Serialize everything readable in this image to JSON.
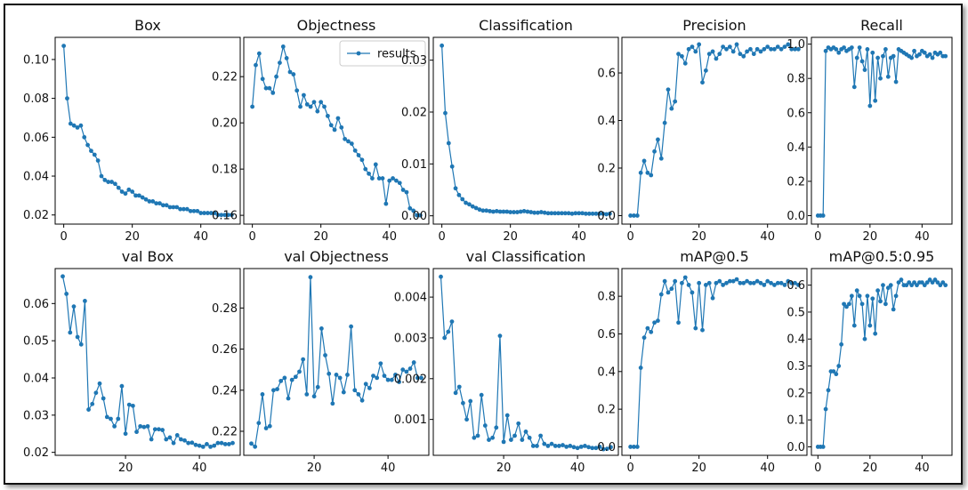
{
  "figure": {
    "series_color": "#1f77b4",
    "background": "#ffffff",
    "border_color": "#111111"
  },
  "legend": {
    "label": "results",
    "placement": "upper-right of Objectness panel"
  },
  "chart_data": [
    {
      "type": "line",
      "title": "Box",
      "xlim": [
        -2.5,
        51.5
      ],
      "ylim": [
        0.0153,
        0.1114
      ],
      "xticks": [
        0,
        20,
        40
      ],
      "xtick_labels": [
        "0",
        "20",
        "40"
      ],
      "yticks": [
        0.02,
        0.04,
        0.06,
        0.08,
        0.1
      ],
      "ytick_labels": [
        "0.02",
        "0.04",
        "0.06",
        "0.08",
        "0.10"
      ],
      "x": [
        0,
        1,
        2,
        3,
        4,
        5,
        6,
        7,
        8,
        9,
        10,
        11,
        12,
        13,
        14,
        15,
        16,
        17,
        18,
        19,
        20,
        21,
        22,
        23,
        24,
        25,
        26,
        27,
        28,
        29,
        30,
        31,
        32,
        33,
        34,
        35,
        36,
        37,
        38,
        39,
        40,
        41,
        42,
        43,
        44,
        45,
        46,
        47,
        48,
        49
      ],
      "y": [
        0.107,
        0.08,
        0.067,
        0.066,
        0.065,
        0.066,
        0.06,
        0.056,
        0.053,
        0.051,
        0.048,
        0.04,
        0.038,
        0.037,
        0.037,
        0.036,
        0.034,
        0.032,
        0.031,
        0.033,
        0.032,
        0.03,
        0.03,
        0.029,
        0.028,
        0.027,
        0.027,
        0.026,
        0.026,
        0.025,
        0.025,
        0.024,
        0.024,
        0.024,
        0.023,
        0.023,
        0.023,
        0.022,
        0.022,
        0.022,
        0.021,
        0.021,
        0.021,
        0.021,
        0.021,
        0.02,
        0.02,
        0.02,
        0.02,
        0.02
      ]
    },
    {
      "type": "line",
      "title": "Objectness",
      "xlim": [
        -2.5,
        51.5
      ],
      "ylim": [
        0.1562,
        0.237
      ],
      "legend": true,
      "xticks": [
        0,
        20,
        40
      ],
      "xtick_labels": [
        "0",
        "20",
        "40"
      ],
      "yticks": [
        0.16,
        0.18,
        0.2,
        0.22
      ],
      "ytick_labels": [
        "0.16",
        "0.18",
        "0.20",
        "0.22"
      ],
      "x": [
        0,
        1,
        2,
        3,
        4,
        5,
        6,
        7,
        8,
        9,
        10,
        11,
        12,
        13,
        14,
        15,
        16,
        17,
        18,
        19,
        20,
        21,
        22,
        23,
        24,
        25,
        26,
        27,
        28,
        29,
        30,
        31,
        32,
        33,
        34,
        35,
        36,
        37,
        38,
        39,
        40,
        41,
        42,
        43,
        44,
        45,
        46,
        47,
        48,
        49
      ],
      "y": [
        0.207,
        0.225,
        0.23,
        0.219,
        0.215,
        0.215,
        0.213,
        0.22,
        0.226,
        0.233,
        0.228,
        0.222,
        0.221,
        0.214,
        0.207,
        0.212,
        0.208,
        0.207,
        0.209,
        0.205,
        0.209,
        0.207,
        0.203,
        0.199,
        0.197,
        0.202,
        0.198,
        0.193,
        0.192,
        0.191,
        0.188,
        0.186,
        0.184,
        0.18,
        0.178,
        0.176,
        0.182,
        0.176,
        0.176,
        0.165,
        0.175,
        0.176,
        0.175,
        0.174,
        0.171,
        0.17,
        0.163,
        0.162,
        0.16,
        0.16
      ]
    },
    {
      "type": "line",
      "title": "Classification",
      "xlim": [
        -2.5,
        51.5
      ],
      "ylim": [
        -0.0016,
        0.0344
      ],
      "xticks": [
        0,
        20,
        40
      ],
      "xtick_labels": [
        "0",
        "20",
        "40"
      ],
      "yticks": [
        0.0,
        0.01,
        0.02,
        0.03
      ],
      "ytick_labels": [
        "0.00",
        "0.01",
        "0.02",
        "0.03"
      ],
      "x": [
        0,
        1,
        2,
        3,
        4,
        5,
        6,
        7,
        8,
        9,
        10,
        11,
        12,
        13,
        14,
        15,
        16,
        17,
        18,
        19,
        20,
        21,
        22,
        23,
        24,
        25,
        26,
        27,
        28,
        29,
        30,
        31,
        32,
        33,
        34,
        35,
        36,
        37,
        38,
        39,
        40,
        41,
        42,
        43,
        44,
        45,
        46,
        47,
        48,
        49
      ],
      "y": [
        0.0328,
        0.0198,
        0.014,
        0.0095,
        0.0053,
        0.004,
        0.0032,
        0.0025,
        0.0022,
        0.0018,
        0.0015,
        0.0012,
        0.001,
        0.001,
        0.0009,
        0.0008,
        0.0009,
        0.0008,
        0.0008,
        0.0008,
        0.0007,
        0.0007,
        0.0007,
        0.0008,
        0.0009,
        0.0008,
        0.0007,
        0.0006,
        0.0006,
        0.0007,
        0.0006,
        0.0005,
        0.0005,
        0.0005,
        0.0005,
        0.0005,
        0.0005,
        0.0005,
        0.0004,
        0.0005,
        0.0005,
        0.0005,
        0.0004,
        0.0004,
        0.0004,
        0.0004,
        0.0004,
        0.0004,
        0.0003,
        0.0004
      ]
    },
    {
      "type": "line",
      "title": "Precision",
      "xlim": [
        -2.5,
        51.5
      ],
      "ylim": [
        -0.0357,
        0.7497
      ],
      "xticks": [
        0,
        20,
        40
      ],
      "xtick_labels": [
        "0",
        "20",
        "40"
      ],
      "yticks": [
        0.0,
        0.2,
        0.4,
        0.6
      ],
      "ytick_labels": [
        "0.0",
        "0.2",
        "0.4",
        "0.6"
      ],
      "x": [
        0,
        1,
        2,
        3,
        4,
        5,
        6,
        7,
        8,
        9,
        10,
        11,
        12,
        13,
        14,
        15,
        16,
        17,
        18,
        19,
        20,
        21,
        22,
        23,
        24,
        25,
        26,
        27,
        28,
        29,
        30,
        31,
        32,
        33,
        34,
        35,
        36,
        37,
        38,
        39,
        40,
        41,
        42,
        43,
        44,
        45,
        46,
        47,
        48,
        49
      ],
      "y": [
        0.0,
        0.0,
        0.0,
        0.18,
        0.23,
        0.18,
        0.17,
        0.27,
        0.32,
        0.24,
        0.39,
        0.53,
        0.45,
        0.48,
        0.68,
        0.67,
        0.64,
        0.7,
        0.71,
        0.69,
        0.72,
        0.56,
        0.61,
        0.68,
        0.69,
        0.66,
        0.68,
        0.71,
        0.7,
        0.71,
        0.69,
        0.72,
        0.68,
        0.67,
        0.69,
        0.7,
        0.68,
        0.7,
        0.69,
        0.7,
        0.71,
        0.7,
        0.7,
        0.71,
        0.7,
        0.71,
        0.72,
        0.7,
        0.7,
        0.7
      ]
    },
    {
      "type": "line",
      "title": "Recall",
      "xlim": [
        -2.5,
        51.5
      ],
      "ylim": [
        -0.0495,
        1.0395
      ],
      "xticks": [
        0,
        20,
        40
      ],
      "xtick_labels": [
        "0",
        "20",
        "40"
      ],
      "yticks": [
        0.0,
        0.2,
        0.4,
        0.6,
        0.8,
        1.0
      ],
      "ytick_labels": [
        "0.0",
        "0.2",
        "0.4",
        "0.6",
        "0.8",
        "1.0"
      ],
      "x": [
        0,
        1,
        2,
        3,
        4,
        5,
        6,
        7,
        8,
        9,
        10,
        11,
        12,
        13,
        14,
        15,
        16,
        17,
        18,
        19,
        20,
        21,
        22,
        23,
        24,
        25,
        26,
        27,
        28,
        29,
        30,
        31,
        32,
        33,
        34,
        35,
        36,
        37,
        38,
        39,
        40,
        41,
        42,
        43,
        44,
        45,
        46,
        47,
        48,
        49
      ],
      "y": [
        0.0,
        0.0,
        0.0,
        0.96,
        0.98,
        0.97,
        0.98,
        0.97,
        0.95,
        0.97,
        0.98,
        0.96,
        0.97,
        0.98,
        0.75,
        0.92,
        0.98,
        0.9,
        0.85,
        0.97,
        0.64,
        0.95,
        0.67,
        0.92,
        0.8,
        0.93,
        0.97,
        0.81,
        0.92,
        0.93,
        0.78,
        0.97,
        0.96,
        0.95,
        0.94,
        0.93,
        0.92,
        0.96,
        0.93,
        0.94,
        0.96,
        0.95,
        0.93,
        0.94,
        0.92,
        0.95,
        0.94,
        0.95,
        0.93,
        0.93
      ]
    },
    {
      "type": "line",
      "title": "val Box",
      "xlim": [
        0.95,
        51.05
      ],
      "ylim": [
        0.0192,
        0.0694
      ],
      "xticks": [
        20,
        40
      ],
      "xtick_labels": [
        "20",
        "40"
      ],
      "yticks": [
        0.02,
        0.03,
        0.04,
        0.05,
        0.06
      ],
      "ytick_labels": [
        "0.02",
        "0.03",
        "0.04",
        "0.05",
        "0.06"
      ],
      "x": [
        3,
        4,
        5,
        6,
        7,
        8,
        9,
        10,
        11,
        12,
        13,
        14,
        15,
        16,
        17,
        18,
        19,
        20,
        21,
        22,
        23,
        24,
        25,
        26,
        27,
        28,
        29,
        30,
        31,
        32,
        33,
        34,
        35,
        36,
        37,
        38,
        39,
        40,
        41,
        42,
        43,
        44,
        45,
        46,
        47,
        48,
        49
      ],
      "y": [
        0.0673,
        0.0626,
        0.0522,
        0.0592,
        0.051,
        0.049,
        0.0607,
        0.0315,
        0.033,
        0.036,
        0.0385,
        0.0345,
        0.0295,
        0.029,
        0.027,
        0.029,
        0.0378,
        0.025,
        0.0328,
        0.0325,
        0.0255,
        0.027,
        0.0268,
        0.027,
        0.0235,
        0.0262,
        0.0262,
        0.026,
        0.0235,
        0.024,
        0.0225,
        0.0246,
        0.0235,
        0.0232,
        0.0225,
        0.0226,
        0.022,
        0.0218,
        0.0215,
        0.0222,
        0.0215,
        0.0218,
        0.0225,
        0.0225,
        0.0222,
        0.0222,
        0.0225
      ]
    },
    {
      "type": "line",
      "title": "val Objectness",
      "xlim": [
        0.95,
        51.05
      ],
      "ylim": [
        0.2083,
        0.2992
      ],
      "xticks": [
        20,
        40
      ],
      "xtick_labels": [
        "20",
        "40"
      ],
      "yticks": [
        0.22,
        0.24,
        0.26,
        0.28
      ],
      "ytick_labels": [
        "0.22",
        "0.24",
        "0.26",
        "0.28"
      ],
      "x": [
        3,
        4,
        5,
        6,
        7,
        8,
        9,
        10,
        11,
        12,
        13,
        14,
        15,
        16,
        17,
        18,
        19,
        20,
        21,
        22,
        23,
        24,
        25,
        26,
        27,
        28,
        29,
        30,
        31,
        32,
        33,
        34,
        35,
        36,
        37,
        38,
        39,
        40,
        41,
        42,
        43,
        44,
        45,
        46,
        47,
        48,
        49
      ],
      "y": [
        0.214,
        0.2125,
        0.224,
        0.238,
        0.2215,
        0.2225,
        0.24,
        0.2405,
        0.2445,
        0.246,
        0.236,
        0.245,
        0.2465,
        0.249,
        0.255,
        0.238,
        0.295,
        0.237,
        0.2415,
        0.27,
        0.257,
        0.248,
        0.2335,
        0.2475,
        0.246,
        0.239,
        0.2475,
        0.271,
        0.24,
        0.238,
        0.235,
        0.243,
        0.241,
        0.247,
        0.246,
        0.253,
        0.247,
        0.245,
        0.245,
        0.2475,
        0.244,
        0.25,
        0.249,
        0.2505,
        0.2535,
        0.246,
        0.246
      ]
    },
    {
      "type": "line",
      "title": "val Classification",
      "xlim": [
        0.95,
        51.05
      ],
      "ylim": [
        0.00012,
        0.0047
      ],
      "xticks": [
        20,
        40
      ],
      "xtick_labels": [
        "20",
        "40"
      ],
      "yticks": [
        0.001,
        0.002,
        0.003,
        0.004
      ],
      "ytick_labels": [
        "0.001",
        "0.002",
        "0.003",
        "0.004"
      ],
      "x": [
        3,
        4,
        5,
        6,
        7,
        8,
        9,
        10,
        11,
        12,
        13,
        14,
        15,
        16,
        17,
        18,
        19,
        20,
        21,
        22,
        23,
        24,
        25,
        26,
        27,
        28,
        29,
        30,
        31,
        32,
        33,
        34,
        35,
        36,
        37,
        38,
        39,
        40,
        41,
        42,
        43,
        44,
        45,
        46,
        47,
        48,
        49
      ],
      "y": [
        0.0045,
        0.003,
        0.00315,
        0.0034,
        0.00165,
        0.0018,
        0.0014,
        0.001,
        0.00145,
        0.00055,
        0.0006,
        0.0016,
        0.00085,
        0.0005,
        0.00055,
        0.0008,
        0.00305,
        0.00045,
        0.0011,
        0.0005,
        0.0006,
        0.0009,
        0.0005,
        0.0007,
        0.00055,
        0.00035,
        0.00035,
        0.0006,
        0.0004,
        0.00035,
        0.0004,
        0.00035,
        0.00035,
        0.00037,
        0.00033,
        0.00035,
        0.00032,
        0.0003,
        0.00033,
        0.00035,
        0.00032,
        0.0003,
        0.0003,
        0.00033,
        0.00027,
        0.00028,
        0.00032
      ]
    },
    {
      "type": "line",
      "title": "mAP@0.5",
      "xlim": [
        -2.5,
        51.5
      ],
      "ylim": [
        -0.0451,
        0.9471
      ],
      "xticks": [
        0,
        20,
        40
      ],
      "xtick_labels": [
        "0",
        "20",
        "40"
      ],
      "yticks": [
        0.0,
        0.2,
        0.4,
        0.6,
        0.8
      ],
      "ytick_labels": [
        "0.0",
        "0.2",
        "0.4",
        "0.6",
        "0.8"
      ],
      "x": [
        0,
        1,
        2,
        3,
        4,
        5,
        6,
        7,
        8,
        9,
        10,
        11,
        12,
        13,
        14,
        15,
        16,
        17,
        18,
        19,
        20,
        21,
        22,
        23,
        24,
        25,
        26,
        27,
        28,
        29,
        30,
        31,
        32,
        33,
        34,
        35,
        36,
        37,
        38,
        39,
        40,
        41,
        42,
        43,
        44,
        45,
        46,
        47,
        48,
        49
      ],
      "y": [
        0.0,
        0.0,
        0.0,
        0.42,
        0.58,
        0.63,
        0.61,
        0.66,
        0.67,
        0.81,
        0.88,
        0.82,
        0.84,
        0.88,
        0.66,
        0.87,
        0.9,
        0.86,
        0.82,
        0.63,
        0.87,
        0.62,
        0.86,
        0.87,
        0.79,
        0.87,
        0.88,
        0.86,
        0.87,
        0.88,
        0.88,
        0.89,
        0.87,
        0.87,
        0.88,
        0.87,
        0.87,
        0.88,
        0.87,
        0.86,
        0.88,
        0.87,
        0.86,
        0.87,
        0.87,
        0.86,
        0.88,
        0.87,
        0.87,
        0.86
      ]
    },
    {
      "type": "line",
      "title": "mAP@0.5:0.95",
      "xlim": [
        -2.5,
        51.5
      ],
      "ylim": [
        -0.0315,
        0.6615
      ],
      "xticks": [
        0,
        20,
        40
      ],
      "xtick_labels": [
        "0",
        "20",
        "40"
      ],
      "yticks": [
        0.0,
        0.1,
        0.2,
        0.3,
        0.4,
        0.5,
        0.6
      ],
      "ytick_labels": [
        "0.0",
        "0.1",
        "0.2",
        "0.3",
        "0.4",
        "0.5",
        "0.6"
      ],
      "x": [
        0,
        1,
        2,
        3,
        4,
        5,
        6,
        7,
        8,
        9,
        10,
        11,
        12,
        13,
        14,
        15,
        16,
        17,
        18,
        19,
        20,
        21,
        22,
        23,
        24,
        25,
        26,
        27,
        28,
        29,
        30,
        31,
        32,
        33,
        34,
        35,
        36,
        37,
        38,
        39,
        40,
        41,
        42,
        43,
        44,
        45,
        46,
        47,
        48,
        49
      ],
      "y": [
        0.0,
        0.0,
        0.0,
        0.14,
        0.21,
        0.28,
        0.28,
        0.27,
        0.3,
        0.38,
        0.53,
        0.52,
        0.53,
        0.56,
        0.45,
        0.58,
        0.56,
        0.53,
        0.4,
        0.56,
        0.45,
        0.55,
        0.42,
        0.58,
        0.54,
        0.6,
        0.53,
        0.59,
        0.6,
        0.51,
        0.56,
        0.61,
        0.62,
        0.6,
        0.6,
        0.61,
        0.6,
        0.61,
        0.6,
        0.61,
        0.61,
        0.6,
        0.61,
        0.62,
        0.61,
        0.62,
        0.61,
        0.6,
        0.61,
        0.6
      ]
    }
  ]
}
